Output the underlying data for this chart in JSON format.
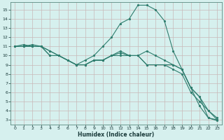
{
  "xlabel": "Humidex (Indice chaleur)",
  "bg_color": "#d6f0ee",
  "line_color": "#2e7d6e",
  "grid_color": "#c8b8b8",
  "xlim": [
    -0.5,
    23.5
  ],
  "ylim": [
    2.5,
    15.8
  ],
  "yticks": [
    3,
    4,
    5,
    6,
    7,
    8,
    9,
    10,
    11,
    12,
    13,
    14,
    15
  ],
  "xticks": [
    0,
    1,
    2,
    3,
    4,
    5,
    6,
    7,
    8,
    9,
    10,
    11,
    12,
    13,
    14,
    15,
    16,
    17,
    18,
    19,
    20,
    21,
    22,
    23
  ],
  "series": [
    {
      "x": [
        0,
        1,
        2,
        3,
        4,
        5,
        6,
        7,
        8,
        9,
        10,
        11,
        12,
        13,
        14,
        15,
        16,
        17,
        18,
        19,
        20,
        21,
        22,
        23
      ],
      "y": [
        11,
        11,
        11.2,
        11,
        10.5,
        10,
        9.5,
        9,
        9,
        9.5,
        9.5,
        10,
        10.3,
        10,
        10,
        9,
        9,
        9,
        9,
        8.5,
        6.5,
        5.5,
        3.2,
        3.0
      ]
    },
    {
      "x": [
        0,
        1,
        2,
        3,
        4,
        5,
        6,
        7,
        8,
        9,
        10,
        11,
        12,
        13,
        14,
        15,
        16,
        17,
        18,
        19,
        20,
        21,
        22,
        23
      ],
      "y": [
        11,
        11,
        11,
        11,
        10.5,
        10,
        9.5,
        9,
        9.5,
        10,
        11,
        12,
        13.5,
        14,
        15.5,
        15.5,
        15,
        13.8,
        10.5,
        8.5,
        6.5,
        4.5,
        3.2,
        2.9
      ]
    },
    {
      "x": [
        0,
        1,
        2,
        3,
        4,
        5,
        6,
        7,
        8,
        9,
        10,
        11,
        12,
        13,
        14,
        15,
        16,
        17,
        18,
        19,
        20,
        21,
        22,
        23
      ],
      "y": [
        11,
        11.2,
        11,
        11,
        10,
        10,
        9.5,
        9,
        9,
        9.5,
        9.5,
        10,
        10.5,
        10,
        10,
        10.5,
        10,
        9.5,
        9,
        8.5,
        6.5,
        5.5,
        4,
        3.2
      ]
    },
    {
      "x": [
        0,
        1,
        2,
        3,
        4,
        5,
        6,
        7,
        8,
        9,
        10,
        11,
        12,
        13,
        14,
        15,
        16,
        17,
        18,
        19,
        20,
        21,
        22,
        23
      ],
      "y": [
        11,
        11,
        11,
        11,
        10,
        10,
        9.5,
        9,
        9,
        9.5,
        9.5,
        10,
        10,
        10,
        10,
        9,
        9,
        9,
        8.5,
        8,
        6,
        5,
        4,
        3
      ]
    }
  ]
}
